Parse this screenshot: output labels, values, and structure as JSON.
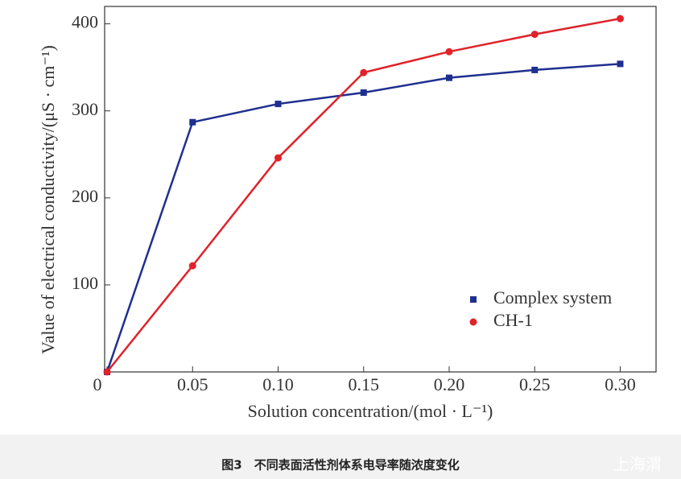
{
  "chart_data": {
    "type": "line",
    "x_label": "Solution concentration/(mol · L⁻¹)",
    "y_label": "Value of electrical conductivity/(μS · cm⁻¹)",
    "x": [
      0,
      0.05,
      0.1,
      0.15,
      0.2,
      0.25,
      0.3
    ],
    "series": [
      {
        "name": "Complex system",
        "color": "#1f2f8f",
        "marker": "square",
        "values": [
          0,
          287,
          308,
          321,
          338,
          347,
          354
        ]
      },
      {
        "name": "CH-1",
        "color": "#e0222a",
        "marker": "circle",
        "values": [
          0,
          122,
          246,
          344,
          368,
          388,
          406
        ]
      }
    ],
    "xlim": [
      0,
      0.32
    ],
    "xticks": [
      {
        "value": 0,
        "label": "0"
      },
      0.05,
      {
        "value": 0.1,
        "label": "0.10"
      },
      0.15,
      {
        "value": 0.2,
        "label": "0.20"
      },
      0.25,
      {
        "value": 0.3,
        "label": "0.30"
      }
    ],
    "ylim": [
      0,
      420
    ],
    "yticks": [
      100,
      200,
      300,
      400
    ],
    "grid": false,
    "legend": "lower right"
  },
  "caption": "图3　不同表面活性剂体系电导率随浓度变化",
  "watermark": "上海渭"
}
